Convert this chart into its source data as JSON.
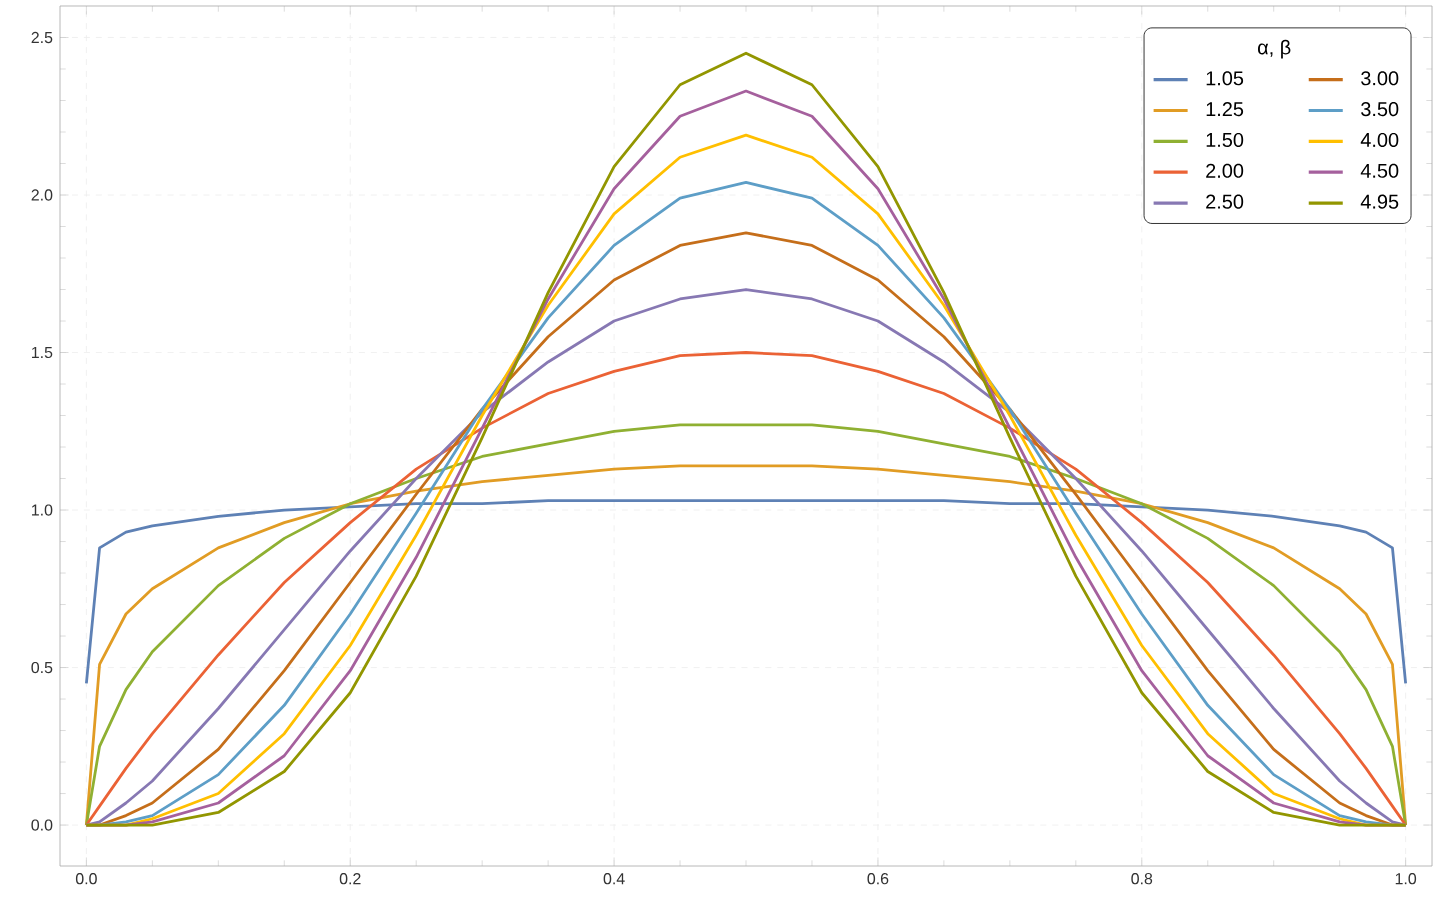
{
  "chart_data": {
    "type": "line",
    "x": [
      0,
      0.01,
      0.03,
      0.05,
      0.1,
      0.15,
      0.2,
      0.25,
      0.3,
      0.35,
      0.4,
      0.45,
      0.5,
      0.55,
      0.6,
      0.65,
      0.7,
      0.75,
      0.8,
      0.85,
      0.9,
      0.95,
      0.97,
      0.99,
      1
    ],
    "series": [
      {
        "name": "1.05",
        "color": "#5e81b5",
        "values": [
          0.45,
          0.88,
          0.93,
          0.95,
          0.98,
          1.0,
          1.01,
          1.02,
          1.02,
          1.03,
          1.03,
          1.03,
          1.03,
          1.03,
          1.03,
          1.03,
          1.02,
          1.02,
          1.01,
          1.0,
          0.98,
          0.95,
          0.93,
          0.88,
          0.45
        ]
      },
      {
        "name": "1.25",
        "color": "#e19c24",
        "values": [
          0,
          0.51,
          0.67,
          0.75,
          0.88,
          0.96,
          1.02,
          1.06,
          1.09,
          1.11,
          1.13,
          1.14,
          1.14,
          1.14,
          1.13,
          1.11,
          1.09,
          1.06,
          1.02,
          0.96,
          0.88,
          0.75,
          0.67,
          0.51,
          0
        ]
      },
      {
        "name": "1.50",
        "color": "#8fb032",
        "values": [
          0,
          0.25,
          0.43,
          0.55,
          0.76,
          0.91,
          1.02,
          1.1,
          1.17,
          1.21,
          1.25,
          1.27,
          1.27,
          1.27,
          1.25,
          1.21,
          1.17,
          1.1,
          1.02,
          0.91,
          0.76,
          0.55,
          0.43,
          0.25,
          0
        ]
      },
      {
        "name": "2.00",
        "color": "#eb6235",
        "values": [
          0,
          0.06,
          0.18,
          0.29,
          0.54,
          0.77,
          0.96,
          1.13,
          1.26,
          1.37,
          1.44,
          1.49,
          1.5,
          1.49,
          1.44,
          1.37,
          1.26,
          1.13,
          0.96,
          0.77,
          0.54,
          0.29,
          0.18,
          0.06,
          0
        ]
      },
      {
        "name": "2.50",
        "color": "#8778b3",
        "values": [
          0,
          0.01,
          0.07,
          0.14,
          0.37,
          0.62,
          0.87,
          1.1,
          1.31,
          1.47,
          1.6,
          1.67,
          1.7,
          1.67,
          1.6,
          1.47,
          1.31,
          1.1,
          0.87,
          0.62,
          0.37,
          0.14,
          0.07,
          0.01,
          0
        ]
      },
      {
        "name": "3.00",
        "color": "#c56e1a",
        "values": [
          0,
          0.0,
          0.03,
          0.07,
          0.24,
          0.49,
          0.77,
          1.05,
          1.32,
          1.55,
          1.73,
          1.84,
          1.88,
          1.84,
          1.73,
          1.55,
          1.32,
          1.05,
          0.77,
          0.49,
          0.24,
          0.07,
          0.03,
          0.0,
          0
        ]
      },
      {
        "name": "3.50",
        "color": "#5d9ec7",
        "values": [
          0,
          0.0,
          0.01,
          0.03,
          0.16,
          0.38,
          0.67,
          0.99,
          1.32,
          1.61,
          1.84,
          1.99,
          2.04,
          1.99,
          1.84,
          1.61,
          1.32,
          0.99,
          0.67,
          0.38,
          0.16,
          0.03,
          0.01,
          0.0,
          0
        ]
      },
      {
        "name": "4.00",
        "color": "#ffbf00",
        "values": [
          0,
          0.0,
          0.0,
          0.02,
          0.1,
          0.29,
          0.57,
          0.92,
          1.3,
          1.65,
          1.94,
          2.12,
          2.19,
          2.12,
          1.94,
          1.65,
          1.3,
          0.92,
          0.57,
          0.29,
          0.1,
          0.02,
          0.0,
          0.0,
          0
        ]
      },
      {
        "name": "4.50",
        "color": "#a5609d",
        "values": [
          0,
          0.0,
          0.0,
          0.01,
          0.07,
          0.22,
          0.49,
          0.85,
          1.26,
          1.67,
          2.02,
          2.25,
          2.33,
          2.25,
          2.02,
          1.67,
          1.26,
          0.85,
          0.49,
          0.22,
          0.07,
          0.01,
          0.0,
          0.0,
          0
        ]
      },
      {
        "name": "4.95",
        "color": "#929600",
        "values": [
          0,
          0.0,
          0.0,
          0.0,
          0.04,
          0.17,
          0.42,
          0.79,
          1.23,
          1.69,
          2.09,
          2.35,
          2.45,
          2.35,
          2.09,
          1.69,
          1.23,
          0.79,
          0.42,
          0.17,
          0.04,
          0.0,
          0.0,
          0.0,
          0
        ]
      }
    ],
    "legend_title": "α, β",
    "legend": "top right",
    "xlim": [
      -0.02,
      1.02
    ],
    "ylim": [
      -0.13,
      2.6
    ],
    "xticks": [
      {
        "value": 0,
        "label": "0.0"
      },
      0.2,
      0.4,
      0.6,
      0.8,
      {
        "value": 1,
        "label": "1.0"
      }
    ],
    "yticks": [
      {
        "value": 0,
        "label": "0.0"
      },
      0.5,
      {
        "value": 1,
        "label": "1.0"
      },
      1.5,
      {
        "value": 2,
        "label": "2.0"
      },
      2.5
    ],
    "grid": true,
    "line_style": "solid",
    "marker": "none"
  }
}
